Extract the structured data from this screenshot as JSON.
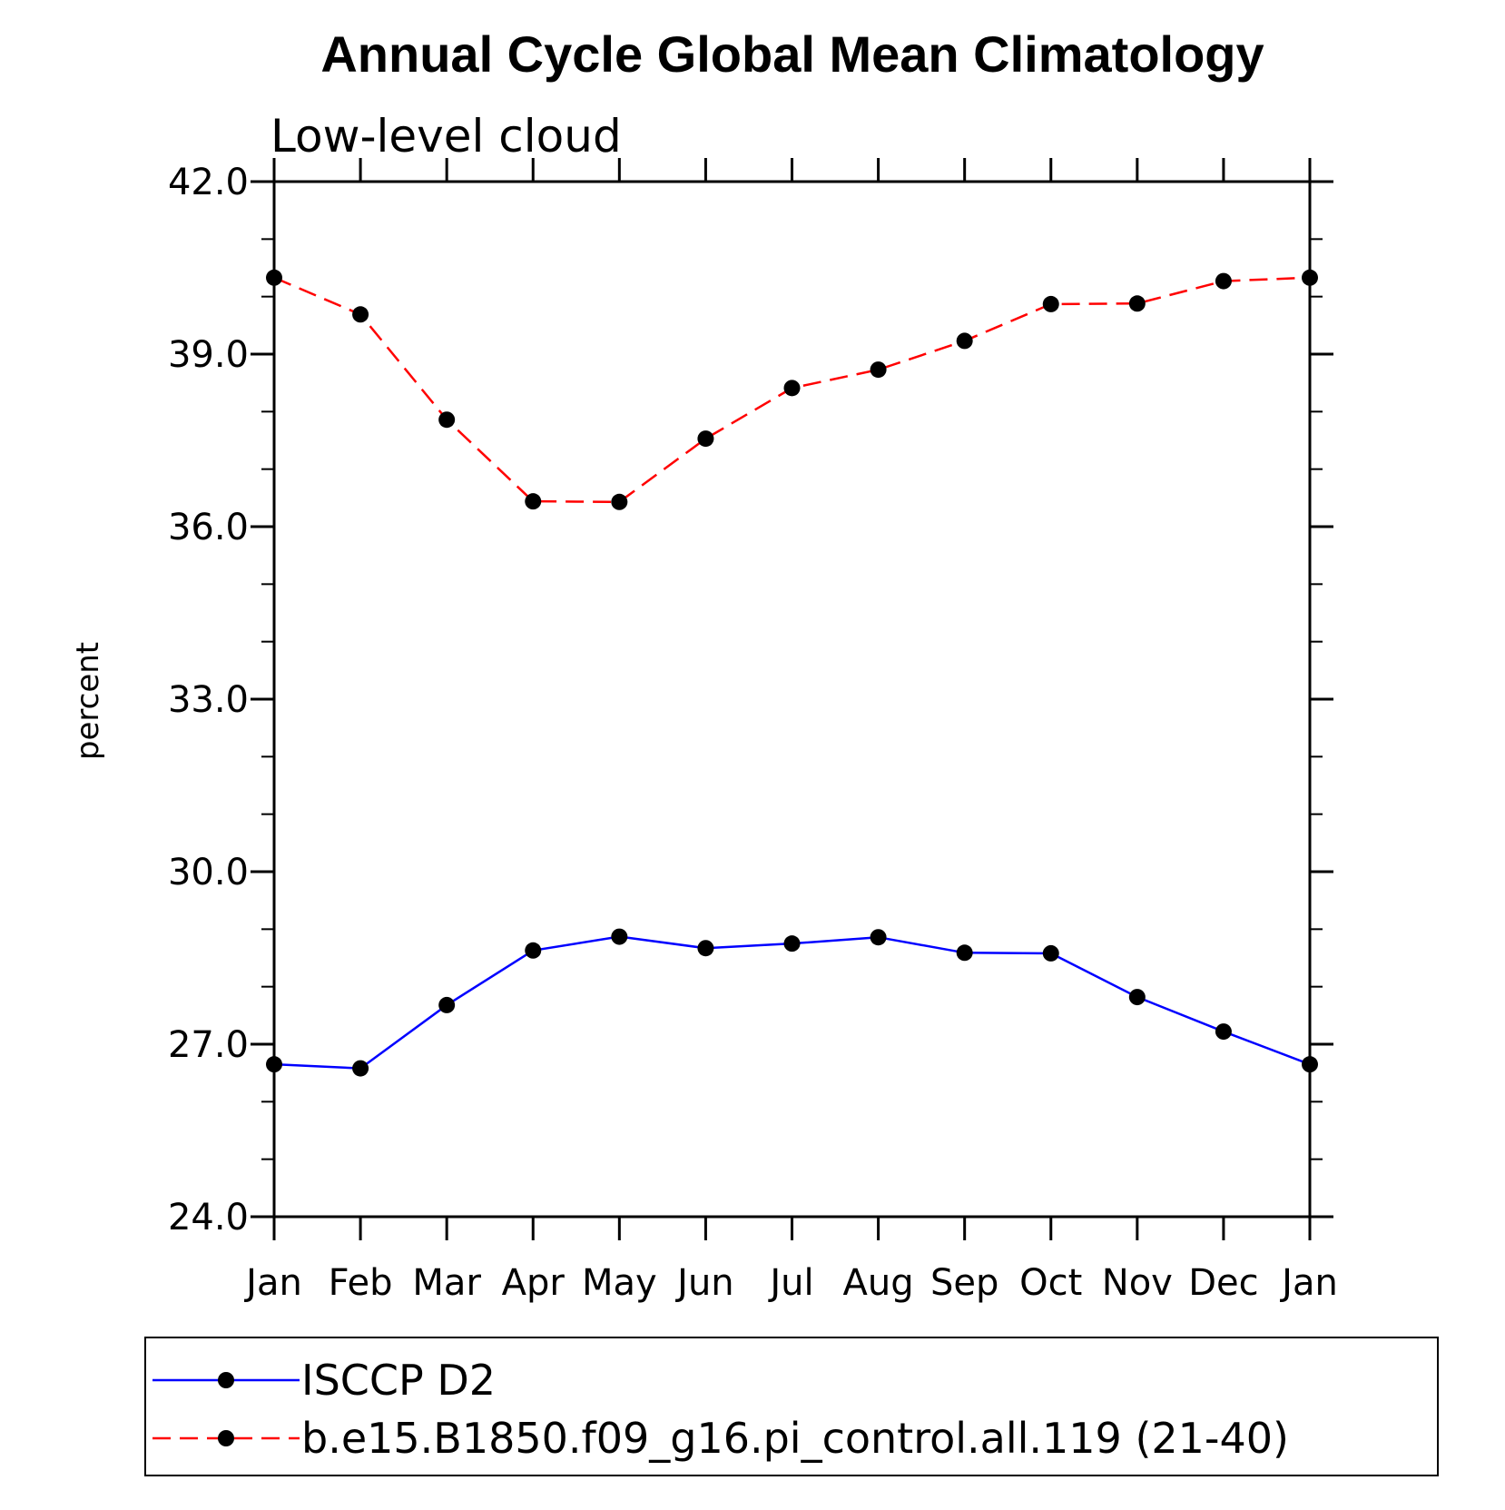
{
  "chart_data": {
    "type": "line",
    "title": "Annual Cycle Global Mean Climatology",
    "subtitle": "Low-level cloud",
    "xlabel": "",
    "ylabel": "percent",
    "categories": [
      "Jan",
      "Feb",
      "Mar",
      "Apr",
      "May",
      "Jun",
      "Jul",
      "Aug",
      "Sep",
      "Oct",
      "Nov",
      "Dec",
      "Jan"
    ],
    "ylim": [
      24.0,
      42.0
    ],
    "yticks": [
      "24.0",
      "27.0",
      "30.0",
      "33.0",
      "36.0",
      "39.0",
      "42.0"
    ],
    "grid": false,
    "legend_position": "bottom",
    "series": [
      {
        "name": "ISCCP D2",
        "color": "#0000ff",
        "line_style": "solid",
        "marker": "filled-circle",
        "values": [
          26.65,
          26.58,
          27.68,
          28.63,
          28.87,
          28.67,
          28.75,
          28.86,
          28.59,
          28.58,
          27.82,
          27.22,
          26.65
        ]
      },
      {
        "name": "b.e15.B1850.f09_g16.pi_control.all.119 (21-40)",
        "color": "#ff0000",
        "line_style": "dashed",
        "marker": "filled-circle",
        "values": [
          40.33,
          39.69,
          37.86,
          36.44,
          36.43,
          37.53,
          38.41,
          38.73,
          39.23,
          39.87,
          39.88,
          40.27,
          40.33
        ]
      }
    ]
  }
}
